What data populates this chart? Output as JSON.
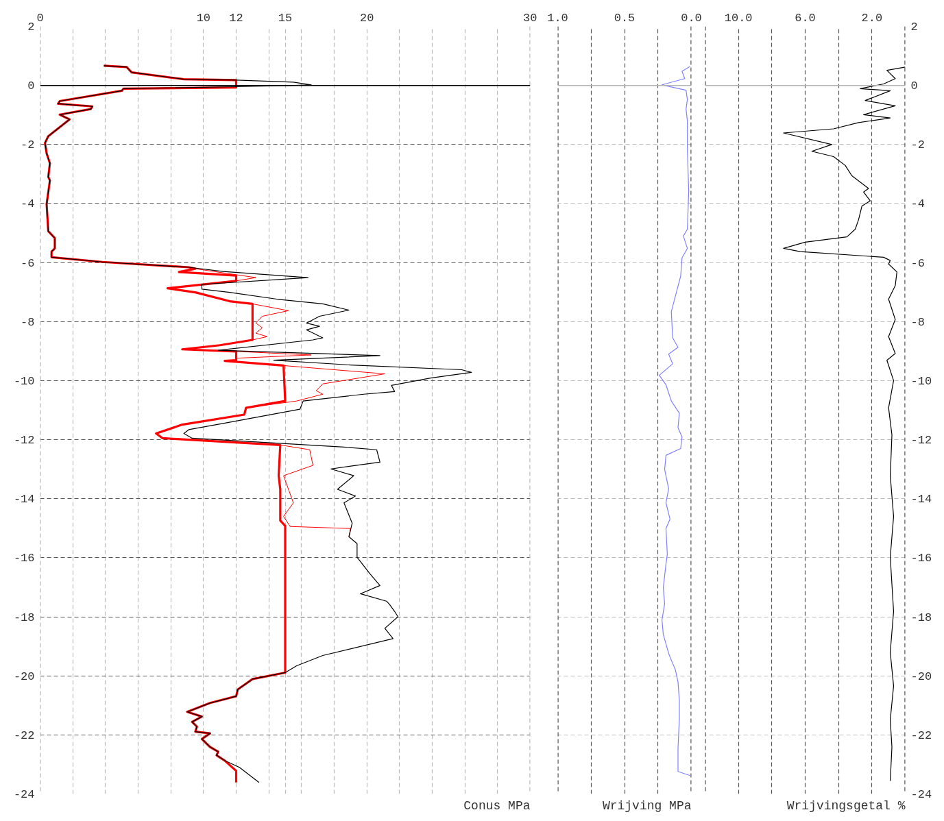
{
  "chart_data": [
    {
      "type": "line",
      "xlabel": "Conus MPa",
      "xlim": [
        0,
        30
      ],
      "ylim": [
        -24,
        2
      ],
      "xticks": [
        0,
        {
          "value": 2,
          "label": null
        },
        {
          "value": 4,
          "label": null
        },
        {
          "value": 6,
          "label": null
        },
        {
          "value": 8,
          "label": null
        },
        10,
        12,
        {
          "value": 14,
          "label": null
        },
        15,
        {
          "value": 16,
          "label": null
        },
        {
          "value": 18,
          "label": null
        },
        20,
        {
          "value": 22,
          "label": null
        },
        {
          "value": 24,
          "label": null
        },
        {
          "value": 26,
          "label": null
        },
        {
          "value": 28,
          "label": null
        },
        30
      ],
      "yticks": [
        -24,
        -22,
        -20,
        -18,
        -16,
        -14,
        -12,
        -10,
        -8,
        -6,
        -4,
        -2,
        0,
        2
      ],
      "grid": true,
      "tick_labels": "xy",
      "ref_lines": [
        {
          "axis": "y",
          "value": 0,
          "color": "#000000"
        }
      ],
      "series": [
        {
          "color": "#000000",
          "x": [
            3.9,
            5.3,
            5.6,
            8.8,
            12.0,
            15.5,
            16.6,
            14.1,
            5.1,
            5.0,
            1.2,
            1.1,
            3.2,
            3.1,
            1.2,
            1.8,
            0.5,
            0.3,
            0.4,
            0.6,
            0.5,
            0.6,
            0.4,
            0.5,
            0.9,
            0.9,
            0.7,
            0.7,
            3.8,
            9.1,
            11.2,
            16.4,
            9.9,
            9.9,
            11.6,
            14.5,
            17.3,
            18.9,
            17.1,
            16.3,
            17.1,
            16.3,
            17.3,
            16.7,
            10.9,
            20.8,
            14.3,
            19.0,
            25.8,
            26.4,
            23.9,
            21.5,
            21.7,
            19.8,
            16.1,
            15.9,
            11.2,
            9.1,
            8.8,
            9.3,
            18.6,
            20.6,
            20.8,
            17.8,
            19.2,
            18.2,
            19.3,
            18.6,
            19.1,
            18.9,
            19.4,
            19.4,
            20.2,
            20.8,
            19.6,
            21.2,
            21.4,
            21.7,
            21.9,
            21.1,
            21.6,
            17.3,
            15.7,
            15.0,
            13.0,
            12.1,
            12.0,
            10.4,
            9.0,
            9.9,
            9.3,
            9.6,
            9.5,
            10.4,
            9.9,
            10.4,
            10.9,
            10.8,
            11.3,
            12.2,
            13.4
          ],
          "values": [
            0.67,
            0.62,
            0.44,
            0.21,
            0.18,
            0.11,
            0.02,
            -0.02,
            -0.11,
            -0.18,
            -0.53,
            -0.62,
            -0.71,
            -0.8,
            -0.99,
            -1.15,
            -1.72,
            -1.95,
            -2.3,
            -2.64,
            -3.1,
            -3.22,
            -4.02,
            -4.94,
            -5.17,
            -5.52,
            -5.63,
            -5.82,
            -5.98,
            -6.16,
            -6.3,
            -6.51,
            -6.74,
            -6.9,
            -7.01,
            -7.24,
            -7.4,
            -7.61,
            -7.82,
            -8.05,
            -8.16,
            -8.28,
            -8.55,
            -8.62,
            -8.97,
            -9.15,
            -9.31,
            -9.47,
            -9.63,
            -9.72,
            -9.91,
            -10.16,
            -10.37,
            -10.46,
            -10.69,
            -10.97,
            -11.45,
            -11.66,
            -11.79,
            -11.95,
            -12.25,
            -12.34,
            -12.76,
            -12.99,
            -13.22,
            -13.68,
            -13.91,
            -14.14,
            -14.83,
            -15.29,
            -15.52,
            -15.98,
            -16.55,
            -16.94,
            -17.22,
            -17.47,
            -17.59,
            -17.82,
            -18.0,
            -18.39,
            -18.74,
            -19.31,
            -19.66,
            -19.89,
            -20.11,
            -20.46,
            -20.69,
            -20.92,
            -21.22,
            -21.38,
            -21.56,
            -21.72,
            -21.89,
            -21.95,
            -22.14,
            -22.41,
            -22.57,
            -22.69,
            -22.87,
            -23.1,
            -23.61
          ]
        },
        {
          "color": "#ff0000",
          "x": [
            9.5,
            13.2,
            12.0,
            null,
            13.0,
            15.2,
            13.6,
            13.2,
            13.6,
            13.2,
            13.9,
            13.0,
            null,
            12.0,
            16.6,
            12.0,
            null,
            14.9,
            21.1,
            17.3,
            16.9,
            17.3,
            15.7,
            12.6,
            null,
            14.7,
            16.5,
            16.7,
            14.9,
            15.5,
            14.9,
            15.3,
            19.0,
            18.9
          ],
          "values": [
            -6.21,
            -6.51,
            -6.62,
            null,
            -7.4,
            -7.63,
            -7.82,
            -8.05,
            -8.21,
            -8.39,
            -8.51,
            -8.62,
            null,
            -9.01,
            -9.13,
            -9.24,
            null,
            -9.49,
            -9.77,
            -10.11,
            -10.34,
            -10.46,
            -10.69,
            -10.92,
            null,
            -12.18,
            -12.34,
            -12.87,
            -13.22,
            -14.14,
            -14.6,
            -14.94,
            -15.01,
            -15.29
          ]
        },
        {
          "color": "#ff0000",
          "x": [
            3.9,
            5.3,
            5.6,
            8.8,
            12.0,
            12.0,
            5.1,
            5.0,
            1.2,
            1.1,
            3.2,
            3.1,
            1.2,
            1.8,
            0.5,
            0.3,
            0.4,
            0.6,
            0.5,
            0.6,
            0.4,
            0.5,
            0.9,
            0.9,
            0.7,
            0.7,
            3.8,
            9.1,
            9.5,
            8.5,
            12.0,
            12.0,
            7.8,
            9.5,
            11.6,
            13.0,
            13.0,
            11.0,
            8.7,
            12.0,
            12.0,
            11.3,
            14.9,
            15.0,
            12.6,
            12.5,
            8.7,
            7.1,
            7.5,
            14.7,
            14.6,
            14.7,
            14.7,
            15.0,
            15.0,
            13.0,
            12.1,
            12.0,
            10.4,
            9.0,
            9.9,
            9.3,
            9.6,
            9.5,
            10.4,
            9.9,
            10.4,
            10.9,
            10.8,
            11.3,
            12.0,
            12.0
          ],
          "values": [
            0.67,
            0.62,
            0.44,
            0.21,
            0.18,
            -0.07,
            -0.11,
            -0.18,
            -0.53,
            -0.62,
            -0.71,
            -0.8,
            -0.99,
            -1.15,
            -1.72,
            -1.95,
            -2.3,
            -2.64,
            -3.1,
            -3.22,
            -4.02,
            -4.94,
            -5.17,
            -5.52,
            -5.63,
            -5.82,
            -5.98,
            -6.16,
            -6.21,
            -6.32,
            -6.44,
            -6.62,
            -6.87,
            -7.01,
            -7.31,
            -7.4,
            -8.62,
            -8.8,
            -8.94,
            -9.01,
            -9.31,
            -9.33,
            -9.49,
            -10.69,
            -10.92,
            -11.15,
            -11.49,
            -11.79,
            -11.95,
            -12.18,
            -13.22,
            -13.68,
            -14.74,
            -14.92,
            -19.89,
            -20.11,
            -20.46,
            -20.69,
            -20.92,
            -21.22,
            -21.38,
            -21.56,
            -21.72,
            -21.89,
            -21.95,
            -22.14,
            -22.41,
            -22.57,
            -22.69,
            -22.87,
            -23.22,
            -23.61
          ]
        }
      ]
    },
    {
      "type": "line",
      "xlabel": "Wrijving MPa",
      "xlim": [
        1.0,
        0.0
      ],
      "ylim": [
        -24,
        2
      ],
      "xticks": [
        {
          "value": 1.0,
          "label": "1.0"
        },
        {
          "value": 0.75,
          "label": null
        },
        {
          "value": 0.5,
          "label": "0.5"
        },
        {
          "value": 0.25,
          "label": null
        },
        {
          "value": 0.0,
          "label": "0.0"
        }
      ],
      "yticks": [
        -24,
        -22,
        -20,
        -18,
        -16,
        -14,
        -12,
        -10,
        -8,
        -6,
        -4,
        -2,
        0,
        2
      ],
      "grid": true,
      "tick_labels": "x",
      "ref_lines": [
        {
          "axis": "y",
          "value": 0,
          "color": "#b4b4b4"
        }
      ],
      "series": [
        {
          "color": "#8080ff",
          "x": [
            0.01,
            0.07,
            0.05,
            0.22,
            0.04,
            0.03,
            0.04,
            0.03,
            0.03,
            0.02,
            0.03,
            0.06,
            0.03,
            0.07,
            0.08,
            0.15,
            0.14,
            0.1,
            0.17,
            0.14,
            0.24,
            0.19,
            0.15,
            0.09,
            0.1,
            0.07,
            0.08,
            0.19,
            0.2,
            0.17,
            0.19,
            0.16,
            0.19,
            0.18,
            0.19,
            0.21,
            0.2,
            0.22,
            0.21,
            0.19,
            0.17,
            0.15,
            0.12,
            0.1,
            0.09,
            0.09,
            0.1,
            0.1,
            0.01
          ],
          "values": [
            0.64,
            0.48,
            0.23,
            0.02,
            -0.16,
            -0.48,
            -0.8,
            -1.2,
            -2.16,
            -3.59,
            -4.87,
            -5.1,
            -5.52,
            -5.84,
            -6.46,
            -7.66,
            -8.55,
            -8.87,
            -9.1,
            -9.43,
            -9.82,
            -10.14,
            -10.69,
            -11.1,
            -11.59,
            -11.91,
            -12.3,
            -12.53,
            -13.01,
            -13.66,
            -14.14,
            -14.69,
            -15.01,
            -15.89,
            -16.21,
            -17.01,
            -17.56,
            -18.11,
            -18.6,
            -18.92,
            -19.24,
            -19.47,
            -19.79,
            -20.21,
            -20.83,
            -21.47,
            -22.44,
            -23.24,
            -23.38
          ]
        }
      ]
    },
    {
      "type": "line",
      "xlabel": "Wrijvingsgetal %",
      "xlim": [
        12,
        0
      ],
      "ylim": [
        -24,
        2
      ],
      "xticks": [
        {
          "value": 12,
          "label": null
        },
        {
          "value": 10,
          "label": "10.0"
        },
        {
          "value": 8,
          "label": null
        },
        {
          "value": 6,
          "label": "6.0"
        },
        {
          "value": 4,
          "label": null
        },
        {
          "value": 2,
          "label": "2.0"
        },
        {
          "value": 0,
          "label": null
        }
      ],
      "yticks": [
        -24,
        -22,
        -20,
        -18,
        -16,
        -14,
        -12,
        -10,
        -8,
        -6,
        -4,
        -2,
        0,
        2
      ],
      "grid": true,
      "ref_lines": [
        {
          "axis": "y",
          "value": 0,
          "color": "#b4b4b4"
        }
      ],
      "series": [
        {
          "color": "#000000",
          "x": [
            0.0,
            1.1,
            0.6,
            1.3,
            2.7,
            0.9,
            2.4,
            0.6,
            2.5,
            0.9,
            2.8,
            4.3,
            7.3,
            4.4,
            5.6,
            4.3,
            3.6,
            3.2,
            2.2,
            2.5,
            2.1,
            2.6,
            2.8,
            3.0,
            3.5,
            6.0,
            7.3,
            6.3,
            1.3,
            0.9,
            1.0,
            0.5,
            0.6,
            1.0,
            0.6,
            1.0,
            0.6,
            1.1,
            0.7,
            1.0,
            0.8,
            0.9,
            0.7,
            0.9,
            0.7,
            0.9,
            0.7,
            0.9,
            0.8,
            0.9
          ],
          "values": [
            0.62,
            0.51,
            0.23,
            0.05,
            -0.11,
            -0.18,
            -0.51,
            -0.69,
            -0.99,
            -1.1,
            -1.26,
            -1.47,
            -1.61,
            -2.0,
            -2.23,
            -2.41,
            -2.71,
            -3.06,
            -3.49,
            -3.61,
            -3.91,
            -4.09,
            -4.55,
            -4.87,
            -5.13,
            -5.31,
            -5.52,
            -5.63,
            -5.82,
            -5.93,
            -6.05,
            -6.32,
            -6.78,
            -7.24,
            -7.93,
            -8.51,
            -9.08,
            -9.31,
            -10.0,
            -10.92,
            -11.84,
            -13.22,
            -14.6,
            -15.98,
            -17.82,
            -19.2,
            -20.34,
            -21.49,
            -22.41,
            -23.56
          ]
        }
      ]
    }
  ]
}
